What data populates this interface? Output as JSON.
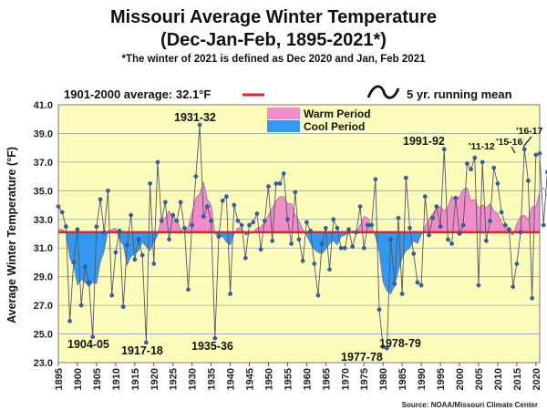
{
  "chart_data": {
    "type": "line",
    "title": "Missouri Average Winter Temperature",
    "subtitle": "(Dec-Jan-Feb, 1895-2021*)",
    "note": "*The winter of 2021 is defined as Dec 2020 and Jan, Feb 2021",
    "ylabel": "Average Winter Temperature (°F)",
    "xlabel": "",
    "ylim": [
      23.0,
      41.0
    ],
    "xlim": [
      1895,
      2021
    ],
    "y_ticks": [
      "41.0",
      "39.0",
      "37.0",
      "35.0",
      "33.0",
      "31.0",
      "29.0",
      "27.0",
      "25.0",
      "23.0"
    ],
    "x_ticks": [
      "1895",
      "1900",
      "1905",
      "1910",
      "1915",
      "1920",
      "1925",
      "1930",
      "1935",
      "1940",
      "1945",
      "1950",
      "1955",
      "1960",
      "1965",
      "1970",
      "1975",
      "1980",
      "1985",
      "1990",
      "1995",
      "2000",
      "2005",
      "2010",
      "2015",
      "2020"
    ],
    "average_label": "1901-2000 average: 32.1°F",
    "average_value": 32.1,
    "running_mean_label": "5 yr. running mean",
    "legend": {
      "warm": "Warm Period",
      "cool": "Cool Period"
    },
    "source": "Source: NOAA/Missouri Climate Center",
    "colors": {
      "warm": "#f08cc8",
      "cool": "#3399ee",
      "avg_line": "#ee1c24",
      "series": "#555566",
      "plot_bg": "#fdfdbb",
      "grid": "#9aa0b4"
    },
    "series": [
      {
        "values": [
          33.9,
          33.5,
          32.5,
          25.9,
          30.0,
          32.3,
          27.0,
          29.7,
          28.6,
          24.8,
          32.5,
          34.4,
          32.1,
          35.0,
          27.7,
          30.7,
          32.2,
          26.9,
          31.2,
          33.3,
          30.2,
          31.6,
          30.5,
          24.4,
          35.5,
          29.9,
          37.0,
          32.9,
          34.2,
          31.6,
          33.3,
          32.9,
          34.2,
          32.4,
          28.1,
          32.6,
          36.0,
          39.6,
          33.2,
          33.9,
          32.9,
          24.7,
          31.8,
          34.3,
          34.6,
          27.8,
          34.0,
          32.9,
          32.6,
          30.3,
          32.6,
          32.8,
          33.4,
          30.9,
          32.9,
          35.3,
          31.5,
          35.5,
          35.5,
          36.2,
          33.0,
          31.3,
          34.9,
          31.6,
          30.1,
          32.8,
          32.2,
          29.9,
          27.7,
          31.3,
          32.4,
          29.5,
          33.0,
          32.4,
          31.0,
          31.0,
          32.3,
          31.1,
          32.1,
          33.9,
          31.0,
          32.6,
          32.6,
          35.8,
          26.7,
          24.1,
          24.0,
          31.6,
          28.5,
          33.1,
          27.8,
          35.9,
          32.4,
          30.6,
          28.6,
          28.4,
          34.6,
          31.9,
          33.1,
          33.9,
          32.5,
          37.9,
          31.6,
          31.3,
          34.5,
          32.0,
          32.6,
          36.9,
          36.5,
          37.3,
          28.4,
          37.0,
          31.5,
          32.9,
          36.6,
          35.5,
          33.5,
          32.6,
          32.3,
          28.3,
          29.9,
          32.1,
          37.9,
          35.7,
          27.5,
          37.5,
          37.6,
          32.6,
          36.3,
          31.4
        ]
      },
      {
        "name": "5 yr. running mean",
        "values": [
          32.3,
          32.3,
          32.1,
          30.3,
          29.8,
          28.4,
          28.8,
          28.6,
          28.3,
          28.6,
          28.5,
          30.0,
          30.8,
          32.2,
          32.3,
          32.4,
          31.6,
          31.2,
          29.8,
          30.4,
          30.6,
          30.8,
          31.4,
          31.1,
          30.8,
          31.4,
          31.9,
          33.1,
          33.1,
          33.6,
          33.0,
          33.0,
          32.3,
          32.1,
          32.5,
          33.5,
          34.5,
          34.8,
          35.6,
          34.4,
          34.0,
          32.0,
          31.8,
          31.8,
          31.4,
          31.2,
          32.0,
          32.4,
          32.4,
          31.9,
          32.0,
          32.1,
          32.4,
          32.5,
          32.8,
          33.3,
          33.8,
          34.3,
          34.6,
          34.6,
          34.1,
          34.1,
          33.3,
          32.9,
          32.3,
          31.9,
          31.3,
          30.9,
          30.7,
          30.6,
          30.9,
          31.3,
          31.5,
          31.2,
          31.8,
          31.9,
          32.0,
          32.2,
          32.1,
          32.6,
          33.2,
          33.1,
          32.5,
          31.8,
          30.7,
          28.6,
          28.0,
          27.8,
          28.3,
          29.4,
          30.3,
          30.8,
          31.0,
          31.5,
          31.3,
          31.9,
          32.5,
          33.0,
          33.4,
          33.8,
          33.9,
          33.6,
          33.9,
          34.6,
          34.3,
          34.6,
          35.1,
          35.2,
          34.3,
          34.4,
          33.8,
          34.0,
          33.8,
          34.1,
          33.6,
          33.4,
          32.8,
          32.4,
          32.1,
          31.9,
          32.7,
          33.2,
          33.3,
          33.0,
          33.9,
          33.9,
          34.9,
          35.2,
          34.6,
          34.4
        ]
      }
    ],
    "annotations": [
      "1931-32",
      "1904-05",
      "1917-18",
      "1935-36",
      "1977-78",
      "1978-79",
      "1991-92",
      "'11-12",
      "'15-16",
      "'16-17"
    ]
  }
}
